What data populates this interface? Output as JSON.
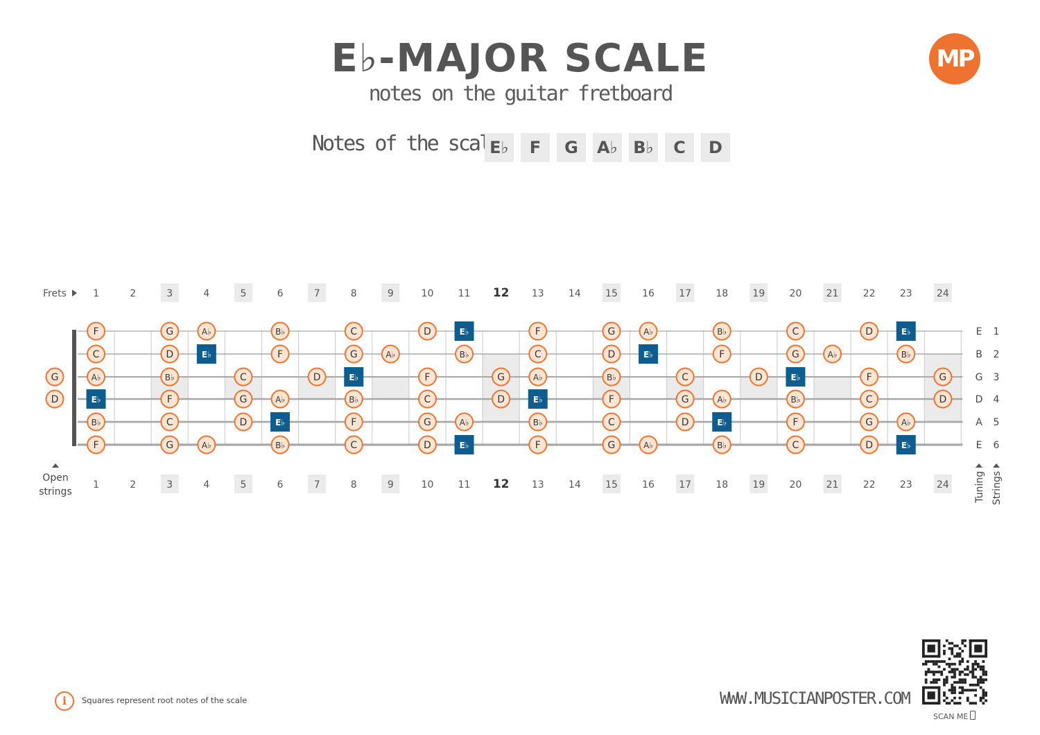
{
  "title": "E♭-MAJOR SCALE",
  "subtitle": "notes on the guitar fretboard",
  "logo_text": "MP",
  "scale_label": "Notes of the scale:",
  "scale_notes": [
    "E♭",
    "F",
    "G",
    "A♭",
    "B♭",
    "C",
    "D"
  ],
  "frets_label": "Frets",
  "fret_numbers": [
    "1",
    "2",
    "3",
    "4",
    "5",
    "6",
    "7",
    "8",
    "9",
    "10",
    "11",
    "12",
    "13",
    "14",
    "15",
    "16",
    "17",
    "18",
    "19",
    "20",
    "21",
    "22",
    "23",
    "24"
  ],
  "open_strings_label": [
    "Open",
    "strings"
  ],
  "tuning_label": "Tuning",
  "strings_label": "Strings",
  "tuning": [
    "E",
    "B",
    "G",
    "D",
    "A",
    "E"
  ],
  "string_numbers": [
    "1",
    "2",
    "3",
    "4",
    "5",
    "6"
  ],
  "open_string_notes": [
    "",
    "",
    "G",
    "D",
    "",
    ""
  ],
  "notes": [
    [
      "F",
      "",
      "G",
      "A♭",
      "",
      "B♭",
      "",
      "C",
      "",
      "D",
      "E♭",
      "",
      "F",
      "",
      "G",
      "A♭",
      "",
      "B♭",
      "",
      "C",
      "",
      "D",
      "E♭",
      ""
    ],
    [
      "C",
      "",
      "D",
      "E♭",
      "",
      "F",
      "",
      "G",
      "A♭",
      "",
      "B♭",
      "",
      "C",
      "",
      "D",
      "E♭",
      "",
      "F",
      "",
      "G",
      "A♭",
      "",
      "B♭",
      ""
    ],
    [
      "A♭",
      "",
      "B♭",
      "",
      "C",
      "",
      "D",
      "E♭",
      "",
      "F",
      "",
      "G",
      "A♭",
      "",
      "B♭",
      "",
      "C",
      "",
      "D",
      "E♭",
      "",
      "F",
      "",
      "G"
    ],
    [
      "E♭",
      "",
      "F",
      "",
      "G",
      "A♭",
      "",
      "B♭",
      "",
      "C",
      "",
      "D",
      "E♭",
      "",
      "F",
      "",
      "G",
      "A♭",
      "",
      "B♭",
      "",
      "C",
      "",
      "D"
    ],
    [
      "B♭",
      "",
      "C",
      "",
      "D",
      "E♭",
      "",
      "F",
      "",
      "G",
      "A♭",
      "",
      "B♭",
      "",
      "C",
      "",
      "D",
      "E♭",
      "",
      "F",
      "",
      "G",
      "A♭",
      ""
    ],
    [
      "F",
      "",
      "G",
      "A♭",
      "",
      "B♭",
      "",
      "C",
      "",
      "D",
      "E♭",
      "",
      "F",
      "",
      "G",
      "A♭",
      "",
      "B♭",
      "",
      "C",
      "",
      "D",
      "E♭",
      ""
    ]
  ],
  "root_note": "E♭",
  "info_text": "Squares represent root notes of the scale",
  "website": "WWW.MUSICIANPOSTER.COM",
  "scan_label": "SCAN ME",
  "colors": {
    "accent": "#ee7330",
    "note_fill": "#fde5d4",
    "root": "#0f5c8e",
    "text": "#555555",
    "inlay": "#ebebeb"
  }
}
